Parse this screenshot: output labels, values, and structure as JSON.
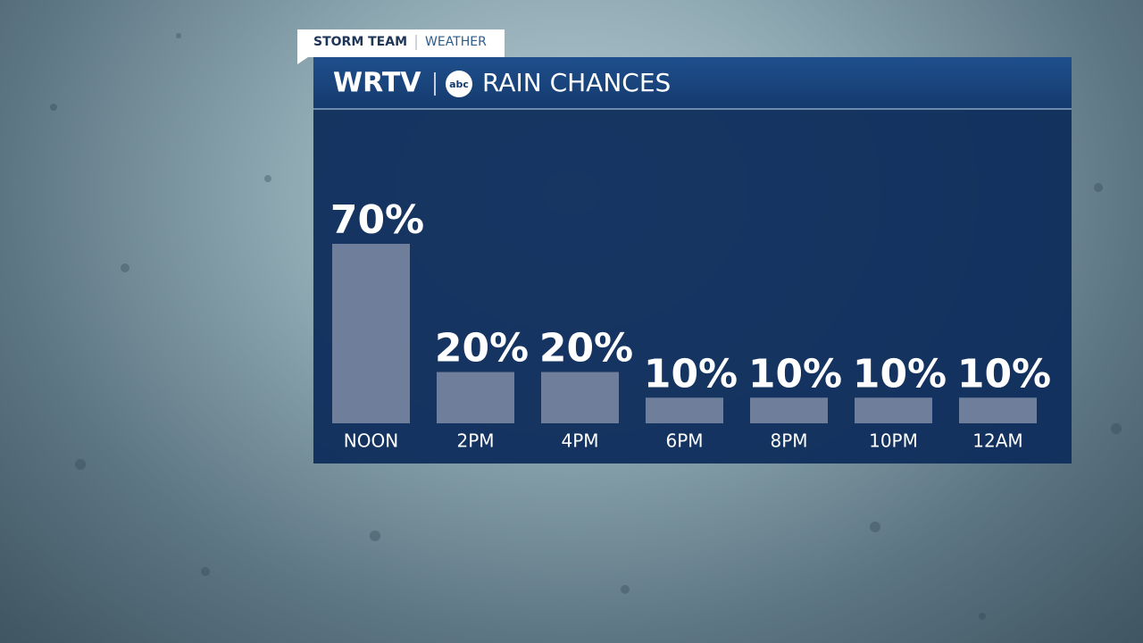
{
  "chart_data": {
    "type": "bar",
    "tag": [
      "STORM TEAM",
      "WEATHER"
    ],
    "brand": "WRTV",
    "network": "abc",
    "title": "RAIN CHANCES",
    "categories": [
      "NOON",
      "2PM",
      "4PM",
      "6PM",
      "8PM",
      "10PM",
      "12AM"
    ],
    "values": [
      70,
      20,
      20,
      10,
      10,
      10,
      10
    ],
    "value_labels": [
      "70%",
      "20%",
      "20%",
      "10%",
      "10%",
      "10%",
      "10%"
    ],
    "color": "#6f7f9b"
  }
}
